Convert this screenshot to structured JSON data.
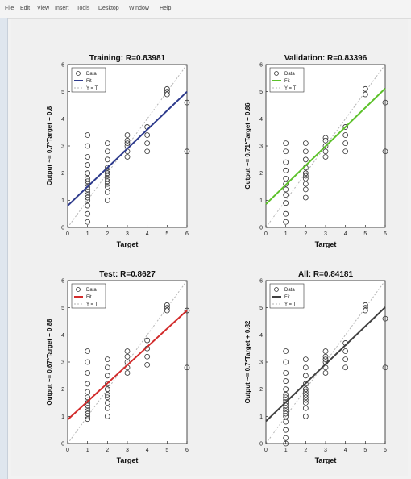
{
  "menu": [
    "File",
    "Edit",
    "View",
    "Insert",
    "Tools",
    "Desktop",
    "Window",
    "Help"
  ],
  "colors": {
    "data": "#333333",
    "identity": "#b5b5b5",
    "training": "#2d3a8c",
    "validation": "#5cc12a",
    "test": "#d22b2b",
    "all": "#404040"
  },
  "chart_data": [
    {
      "type": "scatter",
      "title": "Training: R=0.83981",
      "xlabel": "Target",
      "ylabel": "Output ~= 0.7*Target + 0.8",
      "xlim": [
        0,
        6
      ],
      "ylim": [
        0,
        6
      ],
      "xticks": [
        "0",
        "1",
        "2",
        "3",
        "4",
        "5",
        "6"
      ],
      "yticks": [
        "0",
        "1",
        "2",
        "3",
        "4",
        "5",
        "6"
      ],
      "legend": [
        "Data",
        "Fit",
        "Y = T"
      ],
      "fit": {
        "slope": 0.7,
        "intercept": 0.8
      },
      "fit_color": "#2d3a8c",
      "points": [
        [
          1,
          0.2
        ],
        [
          1,
          0.5
        ],
        [
          1,
          0.8
        ],
        [
          1,
          1.0
        ],
        [
          1,
          1.1
        ],
        [
          1,
          1.2
        ],
        [
          1,
          1.3
        ],
        [
          1,
          1.4
        ],
        [
          1,
          1.5
        ],
        [
          1,
          1.6
        ],
        [
          1,
          1.7
        ],
        [
          1,
          1.8
        ],
        [
          1,
          2.0
        ],
        [
          1,
          2.3
        ],
        [
          1,
          2.6
        ],
        [
          1,
          3.0
        ],
        [
          1,
          3.4
        ],
        [
          2,
          1.0
        ],
        [
          2,
          1.3
        ],
        [
          2,
          1.5
        ],
        [
          2,
          1.6
        ],
        [
          2,
          1.7
        ],
        [
          2,
          1.8
        ],
        [
          2,
          1.9
        ],
        [
          2,
          2.0
        ],
        [
          2,
          2.1
        ],
        [
          2,
          2.2
        ],
        [
          2,
          2.5
        ],
        [
          2,
          2.8
        ],
        [
          2,
          3.1
        ],
        [
          3,
          2.6
        ],
        [
          3,
          2.8
        ],
        [
          3,
          3.0
        ],
        [
          3,
          3.1
        ],
        [
          3,
          3.2
        ],
        [
          3,
          3.4
        ],
        [
          4,
          2.8
        ],
        [
          4,
          3.1
        ],
        [
          4,
          3.4
        ],
        [
          4,
          3.7
        ],
        [
          5,
          4.9
        ],
        [
          5,
          5.0
        ],
        [
          5,
          5.1
        ],
        [
          6,
          4.6
        ],
        [
          6,
          2.8
        ]
      ]
    },
    {
      "type": "scatter",
      "title": "Validation: R=0.83396",
      "xlabel": "Target",
      "ylabel": "Output ~= 0.71*Target + 0.86",
      "xlim": [
        0,
        6
      ],
      "ylim": [
        0,
        6
      ],
      "xticks": [
        "0",
        "1",
        "2",
        "3",
        "4",
        "5",
        "6"
      ],
      "yticks": [
        "0",
        "1",
        "2",
        "3",
        "4",
        "5",
        "6"
      ],
      "legend": [
        "Data",
        "Fit",
        "Y = T"
      ],
      "fit": {
        "slope": 0.71,
        "intercept": 0.86
      },
      "fit_color": "#5cc12a",
      "points": [
        [
          1,
          0.2
        ],
        [
          1,
          0.5
        ],
        [
          1,
          0.9
        ],
        [
          1,
          1.2
        ],
        [
          1,
          1.4
        ],
        [
          1,
          1.6
        ],
        [
          1,
          1.8
        ],
        [
          1,
          2.1
        ],
        [
          1,
          2.4
        ],
        [
          1,
          2.8
        ],
        [
          1,
          3.1
        ],
        [
          2,
          1.1
        ],
        [
          2,
          1.4
        ],
        [
          2,
          1.6
        ],
        [
          2,
          1.8
        ],
        [
          2,
          1.9
        ],
        [
          2,
          2.0
        ],
        [
          2,
          2.2
        ],
        [
          2,
          2.5
        ],
        [
          2,
          2.8
        ],
        [
          2,
          3.1
        ],
        [
          3,
          2.6
        ],
        [
          3,
          2.8
        ],
        [
          3,
          3.0
        ],
        [
          3,
          3.2
        ],
        [
          3,
          3.3
        ],
        [
          4,
          2.8
        ],
        [
          4,
          3.1
        ],
        [
          4,
          3.4
        ],
        [
          4,
          3.7
        ],
        [
          5,
          4.9
        ],
        [
          5,
          5.1
        ],
        [
          6,
          4.6
        ],
        [
          6,
          2.8
        ]
      ]
    },
    {
      "type": "scatter",
      "title": "Test: R=0.8627",
      "xlabel": "Target",
      "ylabel": "Output ~= 0.67*Target + 0.88",
      "xlim": [
        0,
        6
      ],
      "ylim": [
        0,
        6
      ],
      "xticks": [
        "0",
        "1",
        "2",
        "3",
        "4",
        "5",
        "6"
      ],
      "yticks": [
        "0",
        "1",
        "2",
        "3",
        "4",
        "5",
        "6"
      ],
      "legend": [
        "Data",
        "Fit",
        "Y = T"
      ],
      "fit": {
        "slope": 0.67,
        "intercept": 0.88
      },
      "fit_color": "#d22b2b",
      "points": [
        [
          1,
          0.9
        ],
        [
          1,
          1.0
        ],
        [
          1,
          1.1
        ],
        [
          1,
          1.2
        ],
        [
          1,
          1.3
        ],
        [
          1,
          1.4
        ],
        [
          1,
          1.5
        ],
        [
          1,
          1.6
        ],
        [
          1,
          1.7
        ],
        [
          1,
          1.9
        ],
        [
          1,
          2.2
        ],
        [
          1,
          2.6
        ],
        [
          1,
          3.0
        ],
        [
          1,
          3.4
        ],
        [
          2,
          1.0
        ],
        [
          2,
          1.3
        ],
        [
          2,
          1.5
        ],
        [
          2,
          1.7
        ],
        [
          2,
          1.8
        ],
        [
          2,
          2.0
        ],
        [
          2,
          2.2
        ],
        [
          2,
          2.5
        ],
        [
          2,
          2.8
        ],
        [
          2,
          3.1
        ],
        [
          3,
          2.6
        ],
        [
          3,
          2.8
        ],
        [
          3,
          3.0
        ],
        [
          3,
          3.2
        ],
        [
          3,
          3.4
        ],
        [
          4,
          2.9
        ],
        [
          4,
          3.2
        ],
        [
          4,
          3.5
        ],
        [
          4,
          3.8
        ],
        [
          5,
          4.9
        ],
        [
          5,
          5.0
        ],
        [
          5,
          5.1
        ],
        [
          6,
          4.9
        ],
        [
          6,
          2.8
        ]
      ]
    },
    {
      "type": "scatter",
      "title": "All: R=0.84181",
      "xlabel": "Target",
      "ylabel": "Output ~= 0.7*Target + 0.82",
      "xlim": [
        0,
        6
      ],
      "ylim": [
        0,
        6
      ],
      "xticks": [
        "0",
        "1",
        "2",
        "3",
        "4",
        "5",
        "6"
      ],
      "yticks": [
        "0",
        "1",
        "2",
        "3",
        "4",
        "5",
        "6"
      ],
      "legend": [
        "Data",
        "Fit",
        "Y = T"
      ],
      "fit": {
        "slope": 0.7,
        "intercept": 0.82
      },
      "fit_color": "#404040",
      "points": [
        [
          1,
          0.0
        ],
        [
          1,
          0.2
        ],
        [
          1,
          0.5
        ],
        [
          1,
          0.8
        ],
        [
          1,
          1.0
        ],
        [
          1,
          1.1
        ],
        [
          1,
          1.2
        ],
        [
          1,
          1.3
        ],
        [
          1,
          1.4
        ],
        [
          1,
          1.5
        ],
        [
          1,
          1.6
        ],
        [
          1,
          1.7
        ],
        [
          1,
          1.8
        ],
        [
          1,
          2.0
        ],
        [
          1,
          2.3
        ],
        [
          1,
          2.6
        ],
        [
          1,
          3.0
        ],
        [
          1,
          3.4
        ],
        [
          2,
          1.0
        ],
        [
          2,
          1.3
        ],
        [
          2,
          1.5
        ],
        [
          2,
          1.6
        ],
        [
          2,
          1.7
        ],
        [
          2,
          1.8
        ],
        [
          2,
          1.9
        ],
        [
          2,
          2.0
        ],
        [
          2,
          2.2
        ],
        [
          2,
          2.5
        ],
        [
          2,
          2.8
        ],
        [
          2,
          3.1
        ],
        [
          3,
          2.6
        ],
        [
          3,
          2.8
        ],
        [
          3,
          3.0
        ],
        [
          3,
          3.1
        ],
        [
          3,
          3.2
        ],
        [
          3,
          3.4
        ],
        [
          4,
          2.8
        ],
        [
          4,
          3.1
        ],
        [
          4,
          3.4
        ],
        [
          4,
          3.7
        ],
        [
          5,
          4.9
        ],
        [
          5,
          5.0
        ],
        [
          5,
          5.1
        ],
        [
          6,
          4.6
        ],
        [
          6,
          2.8
        ]
      ]
    }
  ]
}
